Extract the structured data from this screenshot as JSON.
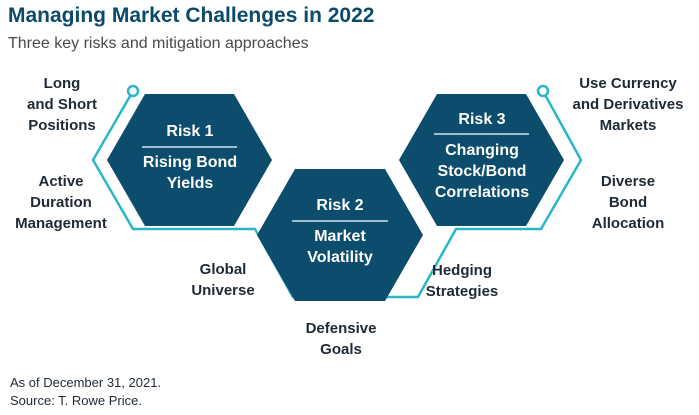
{
  "title": "Managing Market Challenges in 2022",
  "subtitle": "Three key risks and mitigation approaches",
  "colors": {
    "hex_fill": "#0c4d6e",
    "outline": "#2ab6c8",
    "title": "#0b4a6b"
  },
  "risks": [
    {
      "heading": "Risk 1",
      "label": [
        "Rising Bond",
        "Yields"
      ]
    },
    {
      "heading": "Risk 2",
      "label": [
        "Market",
        "Volatility"
      ]
    },
    {
      "heading": "Risk 3",
      "label": [
        "Changing",
        "Stock/Bond",
        "Correlations"
      ]
    }
  ],
  "approaches": {
    "long_short": [
      "Long",
      "and Short",
      "Positions"
    ],
    "active_duration": [
      "Active",
      "Duration",
      "Management"
    ],
    "global_universe": [
      "Global",
      "Universe"
    ],
    "defensive_goals": [
      "Defensive",
      "Goals"
    ],
    "hedging": [
      "Hedging",
      "Strategies"
    ],
    "diverse_bond": [
      "Diverse",
      "Bond",
      "Allocation"
    ],
    "currency": [
      "Use Currency",
      "and Derivatives",
      "Markets"
    ]
  },
  "footer": {
    "as_of": "As of December 31, 2021.",
    "source": "Source: T. Rowe Price."
  }
}
